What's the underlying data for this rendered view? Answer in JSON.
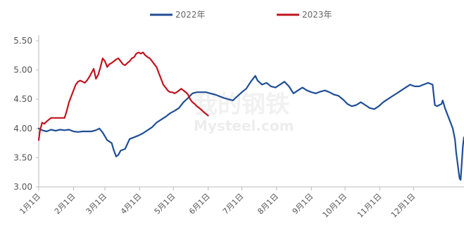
{
  "chart_data": {
    "type": "line",
    "ylim": [
      3.0,
      5.5
    ],
    "ytick_labels": [
      "3.00",
      "3.50",
      "4.00",
      "4.50",
      "5.00",
      "5.50"
    ],
    "ytick_values": [
      3.0,
      3.5,
      4.0,
      4.5,
      5.0,
      5.5
    ],
    "categories": [
      "1月1日",
      "2月1日",
      "3月1日",
      "4月1日",
      "5月1日",
      "6月1日",
      "7月1日",
      "8月1日",
      "9月1日",
      "10月1日",
      "11月1日",
      "12月1日"
    ],
    "legend_position": "top",
    "grid": "none",
    "series": [
      {
        "name": "2022年",
        "color": "#1f4e96",
        "points": [
          [
            1,
            4.0
          ],
          [
            4,
            3.97
          ],
          [
            8,
            3.95
          ],
          [
            12,
            3.98
          ],
          [
            16,
            3.96
          ],
          [
            20,
            3.98
          ],
          [
            24,
            3.97
          ],
          [
            28,
            3.98
          ],
          [
            32,
            3.95
          ],
          [
            36,
            3.94
          ],
          [
            40,
            3.95
          ],
          [
            44,
            3.95
          ],
          [
            48,
            3.95
          ],
          [
            52,
            3.97
          ],
          [
            55,
            4.0
          ],
          [
            58,
            3.93
          ],
          [
            62,
            3.8
          ],
          [
            66,
            3.75
          ],
          [
            68,
            3.62
          ],
          [
            70,
            3.52
          ],
          [
            72,
            3.55
          ],
          [
            74,
            3.62
          ],
          [
            78,
            3.65
          ],
          [
            82,
            3.82
          ],
          [
            86,
            3.85
          ],
          [
            90,
            3.88
          ],
          [
            94,
            3.92
          ],
          [
            98,
            3.97
          ],
          [
            102,
            4.02
          ],
          [
            106,
            4.1
          ],
          [
            110,
            4.15
          ],
          [
            114,
            4.2
          ],
          [
            118,
            4.26
          ],
          [
            122,
            4.3
          ],
          [
            126,
            4.35
          ],
          [
            130,
            4.45
          ],
          [
            134,
            4.52
          ],
          [
            138,
            4.6
          ],
          [
            142,
            4.62
          ],
          [
            146,
            4.62
          ],
          [
            150,
            4.62
          ],
          [
            154,
            4.6
          ],
          [
            158,
            4.58
          ],
          [
            162,
            4.55
          ],
          [
            166,
            4.52
          ],
          [
            170,
            4.5
          ],
          [
            174,
            4.48
          ],
          [
            178,
            4.55
          ],
          [
            182,
            4.62
          ],
          [
            186,
            4.68
          ],
          [
            190,
            4.8
          ],
          [
            194,
            4.9
          ],
          [
            196,
            4.82
          ],
          [
            200,
            4.75
          ],
          [
            204,
            4.78
          ],
          [
            208,
            4.72
          ],
          [
            212,
            4.7
          ],
          [
            216,
            4.75
          ],
          [
            220,
            4.8
          ],
          [
            224,
            4.72
          ],
          [
            228,
            4.6
          ],
          [
            232,
            4.65
          ],
          [
            236,
            4.7
          ],
          [
            240,
            4.65
          ],
          [
            244,
            4.62
          ],
          [
            248,
            4.6
          ],
          [
            252,
            4.63
          ],
          [
            256,
            4.65
          ],
          [
            260,
            4.62
          ],
          [
            264,
            4.58
          ],
          [
            268,
            4.56
          ],
          [
            272,
            4.5
          ],
          [
            276,
            4.42
          ],
          [
            280,
            4.38
          ],
          [
            284,
            4.4
          ],
          [
            288,
            4.45
          ],
          [
            292,
            4.4
          ],
          [
            296,
            4.35
          ],
          [
            300,
            4.33
          ],
          [
            304,
            4.38
          ],
          [
            308,
            4.45
          ],
          [
            312,
            4.5
          ],
          [
            316,
            4.55
          ],
          [
            320,
            4.6
          ],
          [
            324,
            4.65
          ],
          [
            328,
            4.7
          ],
          [
            332,
            4.75
          ],
          [
            336,
            4.72
          ],
          [
            340,
            4.72
          ],
          [
            344,
            4.75
          ],
          [
            348,
            4.78
          ],
          [
            352,
            4.75
          ],
          [
            354,
            4.4
          ],
          [
            356,
            4.38
          ],
          [
            358,
            4.4
          ],
          [
            360,
            4.42
          ],
          [
            361,
            4.48
          ],
          [
            362,
            4.42
          ],
          [
            363,
            4.35
          ],
          [
            364,
            4.3
          ],
          [
            365,
            4.25
          ],
          [
            366,
            4.2
          ],
          [
            367,
            4.15
          ],
          [
            368,
            4.1
          ],
          [
            369,
            4.05
          ],
          [
            370,
            4.0
          ],
          [
            371,
            3.9
          ],
          [
            372,
            3.8
          ],
          [
            373,
            3.6
          ],
          [
            374,
            3.45
          ],
          [
            375,
            3.3
          ],
          [
            376,
            3.15
          ],
          [
            377,
            3.12
          ],
          [
            378,
            3.4
          ],
          [
            379,
            3.7
          ],
          [
            380,
            3.85
          ]
        ]
      },
      {
        "name": "2023年",
        "color": "#c0151f",
        "points": [
          [
            1,
            3.8
          ],
          [
            2,
            3.95
          ],
          [
            4,
            4.1
          ],
          [
            6,
            4.08
          ],
          [
            8,
            4.12
          ],
          [
            10,
            4.15
          ],
          [
            12,
            4.18
          ],
          [
            16,
            4.18
          ],
          [
            20,
            4.18
          ],
          [
            24,
            4.18
          ],
          [
            26,
            4.3
          ],
          [
            28,
            4.45
          ],
          [
            30,
            4.55
          ],
          [
            32,
            4.65
          ],
          [
            34,
            4.75
          ],
          [
            36,
            4.8
          ],
          [
            38,
            4.82
          ],
          [
            40,
            4.8
          ],
          [
            42,
            4.78
          ],
          [
            44,
            4.82
          ],
          [
            46,
            4.88
          ],
          [
            48,
            4.95
          ],
          [
            50,
            5.02
          ],
          [
            52,
            4.85
          ],
          [
            54,
            4.92
          ],
          [
            56,
            5.05
          ],
          [
            58,
            5.2
          ],
          [
            60,
            5.15
          ],
          [
            62,
            5.05
          ],
          [
            64,
            5.1
          ],
          [
            66,
            5.12
          ],
          [
            68,
            5.15
          ],
          [
            70,
            5.18
          ],
          [
            72,
            5.2
          ],
          [
            74,
            5.15
          ],
          [
            76,
            5.1
          ],
          [
            78,
            5.08
          ],
          [
            80,
            5.12
          ],
          [
            82,
            5.15
          ],
          [
            84,
            5.2
          ],
          [
            86,
            5.22
          ],
          [
            88,
            5.28
          ],
          [
            90,
            5.3
          ],
          [
            92,
            5.28
          ],
          [
            94,
            5.3
          ],
          [
            96,
            5.25
          ],
          [
            98,
            5.22
          ],
          [
            100,
            5.2
          ],
          [
            102,
            5.15
          ],
          [
            104,
            5.1
          ],
          [
            106,
            5.05
          ],
          [
            108,
            4.95
          ],
          [
            110,
            4.85
          ],
          [
            112,
            4.75
          ],
          [
            114,
            4.7
          ],
          [
            116,
            4.65
          ],
          [
            118,
            4.62
          ],
          [
            120,
            4.62
          ],
          [
            122,
            4.6
          ],
          [
            124,
            4.62
          ],
          [
            126,
            4.65
          ],
          [
            128,
            4.68
          ],
          [
            130,
            4.65
          ],
          [
            132,
            4.62
          ],
          [
            134,
            4.58
          ],
          [
            136,
            4.5
          ],
          [
            138,
            4.45
          ],
          [
            140,
            4.42
          ],
          [
            142,
            4.38
          ],
          [
            144,
            4.35
          ],
          [
            146,
            4.32
          ],
          [
            148,
            4.28
          ],
          [
            150,
            4.25
          ],
          [
            152,
            4.22
          ]
        ]
      }
    ]
  },
  "watermark": {
    "cn": "我的钢铁",
    "en": "Mysteel.com"
  }
}
